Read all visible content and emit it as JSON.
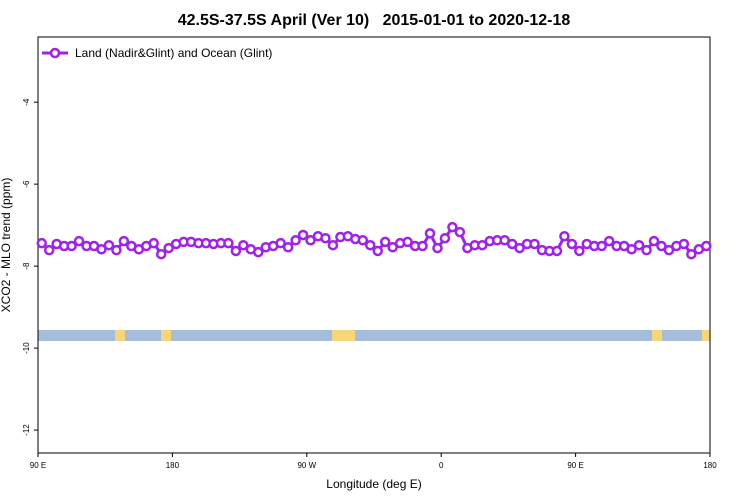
{
  "chart_data": {
    "type": "line",
    "title": "42.5S-37.5S April (Ver 10)   2015-01-01 to 2020-12-18",
    "xlabel": "Longitude (deg E)",
    "ylabel": "XCO2 - MLO trend (ppm)",
    "xlim": [
      90,
      540
    ],
    "ylim": [
      -12.56,
      -2.41
    ],
    "xticks": [
      {
        "value": 90,
        "label": "90 E"
      },
      180,
      {
        "value": 270,
        "label": "90 W"
      },
      {
        "value": 360,
        "label": "0"
      },
      {
        "value": 450,
        "label": "90 E"
      },
      {
        "value": 540,
        "label": "180"
      }
    ],
    "yticks": [
      -4,
      -6,
      -8,
      -10,
      -12
    ],
    "legend": "top-left",
    "x": [
      92.5,
      97.5,
      102.5,
      107.5,
      112.5,
      117.5,
      122.5,
      127.5,
      132.5,
      137.5,
      142.5,
      147.5,
      152.5,
      157.5,
      162.5,
      167.5,
      172.5,
      177.5,
      182.5,
      187.5,
      192.5,
      197.5,
      202.5,
      207.5,
      212.5,
      217.5,
      222.5,
      227.5,
      232.5,
      237.5,
      242.5,
      247.5,
      252.5,
      257.5,
      262.5,
      267.5,
      272.5,
      277.5,
      282.5,
      287.5,
      292.5,
      297.5,
      302.5,
      307.5,
      312.5,
      317.5,
      322.5,
      327.5,
      332.5,
      337.5,
      342.5,
      347.5,
      352.5,
      357.5,
      362.5,
      367.5,
      372.5,
      377.5,
      382.5,
      387.5,
      392.5,
      397.5,
      402.5,
      407.5,
      412.5,
      417.5,
      422.5,
      427.5,
      432.5,
      437.5,
      442.5,
      447.5,
      452.5,
      457.5,
      462.5,
      467.5,
      472.5,
      477.5,
      482.5,
      487.5,
      492.5,
      497.5,
      502.5,
      507.5,
      512.5,
      517.5,
      522.5,
      527.5,
      532.5,
      537.5
    ],
    "series": [
      {
        "name": "Land (Nadir&Glint) and Ocean (Glint)",
        "color": "#a020f0",
        "values": [
          -7.44,
          -7.61,
          -7.46,
          -7.51,
          -7.51,
          -7.39,
          -7.51,
          -7.51,
          -7.59,
          -7.49,
          -7.61,
          -7.39,
          -7.51,
          -7.59,
          -7.51,
          -7.44,
          -7.71,
          -7.56,
          -7.46,
          -7.41,
          -7.41,
          -7.44,
          -7.44,
          -7.46,
          -7.44,
          -7.44,
          -7.63,
          -7.49,
          -7.59,
          -7.66,
          -7.54,
          -7.51,
          -7.44,
          -7.54,
          -7.37,
          -7.24,
          -7.37,
          -7.27,
          -7.32,
          -7.49,
          -7.29,
          -7.27,
          -7.34,
          -7.37,
          -7.49,
          -7.63,
          -7.41,
          -7.54,
          -7.44,
          -7.41,
          -7.51,
          -7.51,
          -7.2,
          -7.56,
          -7.32,
          -7.05,
          -7.17,
          -7.56,
          -7.49,
          -7.49,
          -7.39,
          -7.37,
          -7.37,
          -7.46,
          -7.56,
          -7.46,
          -7.46,
          -7.61,
          -7.63,
          -7.63,
          -7.27,
          -7.46,
          -7.63,
          -7.46,
          -7.51,
          -7.51,
          -7.39,
          -7.51,
          -7.51,
          -7.59,
          -7.49,
          -7.61,
          -7.39,
          -7.51,
          -7.61,
          -7.51,
          -7.46,
          -7.71,
          -7.59,
          -7.51
        ]
      }
    ]
  }
}
